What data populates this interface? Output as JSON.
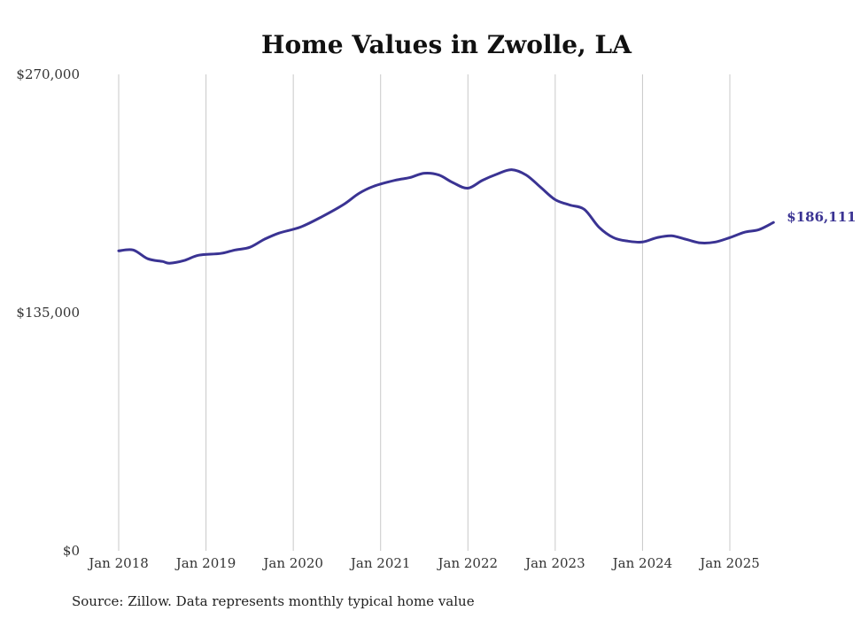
{
  "chart_data": {
    "type": "line",
    "title": "Home Values in Zwolle, LA",
    "source": "Source: Zillow. Data represents monthly typical home value",
    "ylim": [
      0,
      270000
    ],
    "y_ticks": [
      {
        "value": 0,
        "label": "$0"
      },
      {
        "value": 135000,
        "label": "$135,000"
      },
      {
        "value": 270000,
        "label": "$270,000"
      }
    ],
    "x_ticks": [
      {
        "value": "2018-01",
        "label": "Jan 2018"
      },
      {
        "value": "2019-01",
        "label": "Jan 2019"
      },
      {
        "value": "2020-01",
        "label": "Jan 2020"
      },
      {
        "value": "2021-01",
        "label": "Jan 2021"
      },
      {
        "value": "2022-01",
        "label": "Jan 2022"
      },
      {
        "value": "2023-01",
        "label": "Jan 2023"
      },
      {
        "value": "2024-01",
        "label": "Jan 2024"
      },
      {
        "value": "2025-01",
        "label": "Jan 2025"
      }
    ],
    "xlim": [
      "2018-01",
      "2025-07"
    ],
    "grid": "vertical",
    "line_color": "#3a3393",
    "end_label": "$186,111",
    "series": [
      {
        "x": [
          "2018-01",
          "2018-03",
          "2018-05",
          "2018-07",
          "2018-08",
          "2018-10",
          "2018-12",
          "2019-03",
          "2019-05",
          "2019-07",
          "2019-09",
          "2019-11",
          "2020-02",
          "2020-05",
          "2020-08",
          "2020-10",
          "2020-12",
          "2021-03",
          "2021-05",
          "2021-07",
          "2021-09",
          "2021-11",
          "2022-01",
          "2022-03",
          "2022-05",
          "2022-07",
          "2022-09",
          "2022-11",
          "2023-01",
          "2023-03",
          "2023-05",
          "2023-07",
          "2023-09",
          "2023-11",
          "2024-01",
          "2024-03",
          "2024-05",
          "2024-07",
          "2024-09",
          "2024-11",
          "2025-01",
          "2025-03",
          "2025-05",
          "2025-07"
        ],
        "y": [
          170000,
          170500,
          165500,
          164000,
          163000,
          164500,
          167500,
          168500,
          170500,
          172000,
          176500,
          180000,
          183500,
          189500,
          196500,
          202500,
          206500,
          210000,
          211500,
          214000,
          213000,
          208500,
          205500,
          210000,
          213500,
          216000,
          213000,
          206000,
          199000,
          196000,
          193500,
          183500,
          177500,
          175500,
          175000,
          177500,
          178500,
          176500,
          174500,
          175000,
          177500,
          180500,
          182000,
          186111
        ]
      }
    ]
  }
}
